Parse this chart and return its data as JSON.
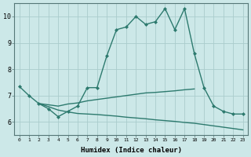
{
  "xlabel": "Humidex (Indice chaleur)",
  "background_color": "#cce8e8",
  "grid_color": "#aacccc",
  "line_color": "#2d7a6e",
  "xlim": [
    -0.5,
    23.5
  ],
  "ylim": [
    5.5,
    10.5
  ],
  "xticks": [
    0,
    1,
    2,
    3,
    4,
    5,
    6,
    7,
    8,
    9,
    10,
    11,
    12,
    13,
    14,
    15,
    16,
    17,
    18,
    19,
    20,
    21,
    22,
    23
  ],
  "yticks": [
    6,
    7,
    8,
    9,
    10
  ],
  "series1_x": [
    0,
    1,
    2,
    3,
    4,
    5,
    6,
    7,
    8,
    9,
    10,
    11,
    12,
    13,
    14,
    15,
    16,
    17,
    18,
    19,
    20,
    21,
    22,
    23
  ],
  "series1_y": [
    7.35,
    7.0,
    6.7,
    6.5,
    6.2,
    6.4,
    6.6,
    7.3,
    7.3,
    8.5,
    9.5,
    9.6,
    10.0,
    9.7,
    9.8,
    10.3,
    9.5,
    10.3,
    8.6,
    7.3,
    6.6,
    6.4,
    6.3,
    6.3
  ],
  "series2_x": [
    2,
    3,
    4,
    5,
    6,
    7,
    8,
    9,
    10,
    11,
    12,
    13,
    14,
    15,
    16,
    17,
    18
  ],
  "series2_y": [
    6.7,
    6.65,
    6.6,
    6.68,
    6.72,
    6.8,
    6.85,
    6.9,
    6.95,
    7.0,
    7.05,
    7.1,
    7.12,
    7.15,
    7.18,
    7.22,
    7.25
  ],
  "series3_x": [
    2,
    3,
    4,
    5,
    6,
    7,
    8,
    9,
    10,
    11,
    12,
    13,
    14,
    15,
    16,
    17,
    18,
    19,
    20,
    21,
    22,
    23
  ],
  "series3_y": [
    6.7,
    6.58,
    6.45,
    6.38,
    6.32,
    6.3,
    6.28,
    6.25,
    6.22,
    6.18,
    6.15,
    6.12,
    6.08,
    6.05,
    6.02,
    5.98,
    5.95,
    5.9,
    5.85,
    5.8,
    5.75,
    5.7
  ],
  "marker_style": "D",
  "marker_size": 2.0,
  "linewidth": 1.0
}
